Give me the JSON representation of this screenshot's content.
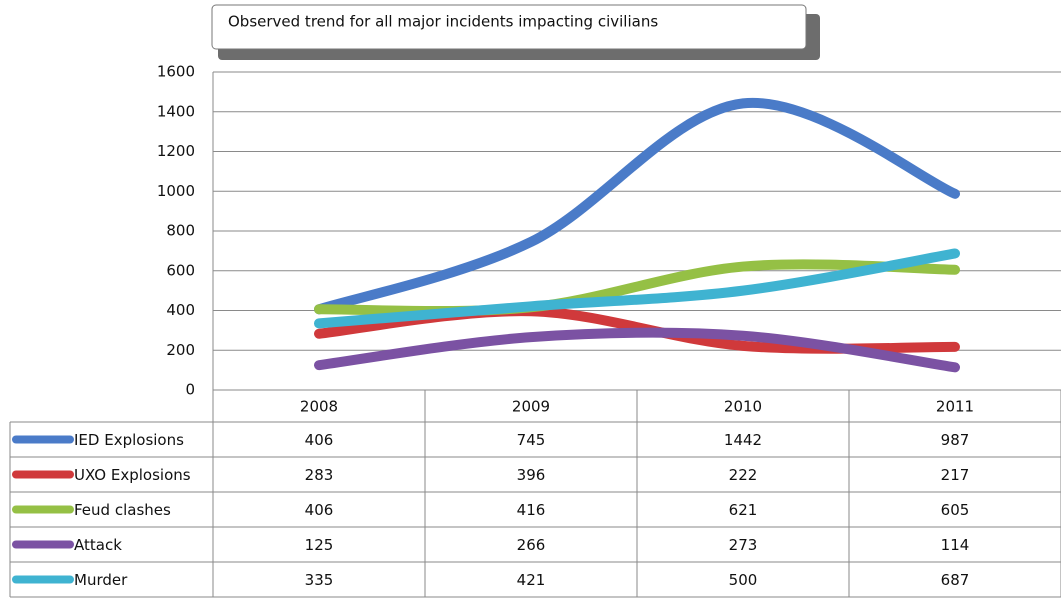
{
  "chart_data": {
    "type": "line",
    "title": "Observed trend for all major incidents impacting civilians",
    "categories": [
      "2008",
      "2009",
      "2010",
      "2011"
    ],
    "series": [
      {
        "name": "IED Explosions",
        "color": "#4a7bc8",
        "values": [
          406,
          745,
          1442,
          987
        ]
      },
      {
        "name": "UXO Explosions",
        "color": "#d0393b",
        "values": [
          283,
          396,
          222,
          217
        ]
      },
      {
        "name": "Feud clashes",
        "color": "#95c045",
        "values": [
          406,
          416,
          621,
          605
        ]
      },
      {
        "name": "Attack",
        "color": "#7b52a3",
        "values": [
          125,
          266,
          273,
          114
        ]
      },
      {
        "name": "Murder",
        "color": "#3fb3d1",
        "values": [
          335,
          421,
          500,
          687
        ]
      }
    ],
    "ylim": [
      0,
      1600
    ],
    "yticks": [
      0,
      200,
      400,
      600,
      800,
      1000,
      1200,
      1400,
      1600
    ],
    "grid": true
  }
}
